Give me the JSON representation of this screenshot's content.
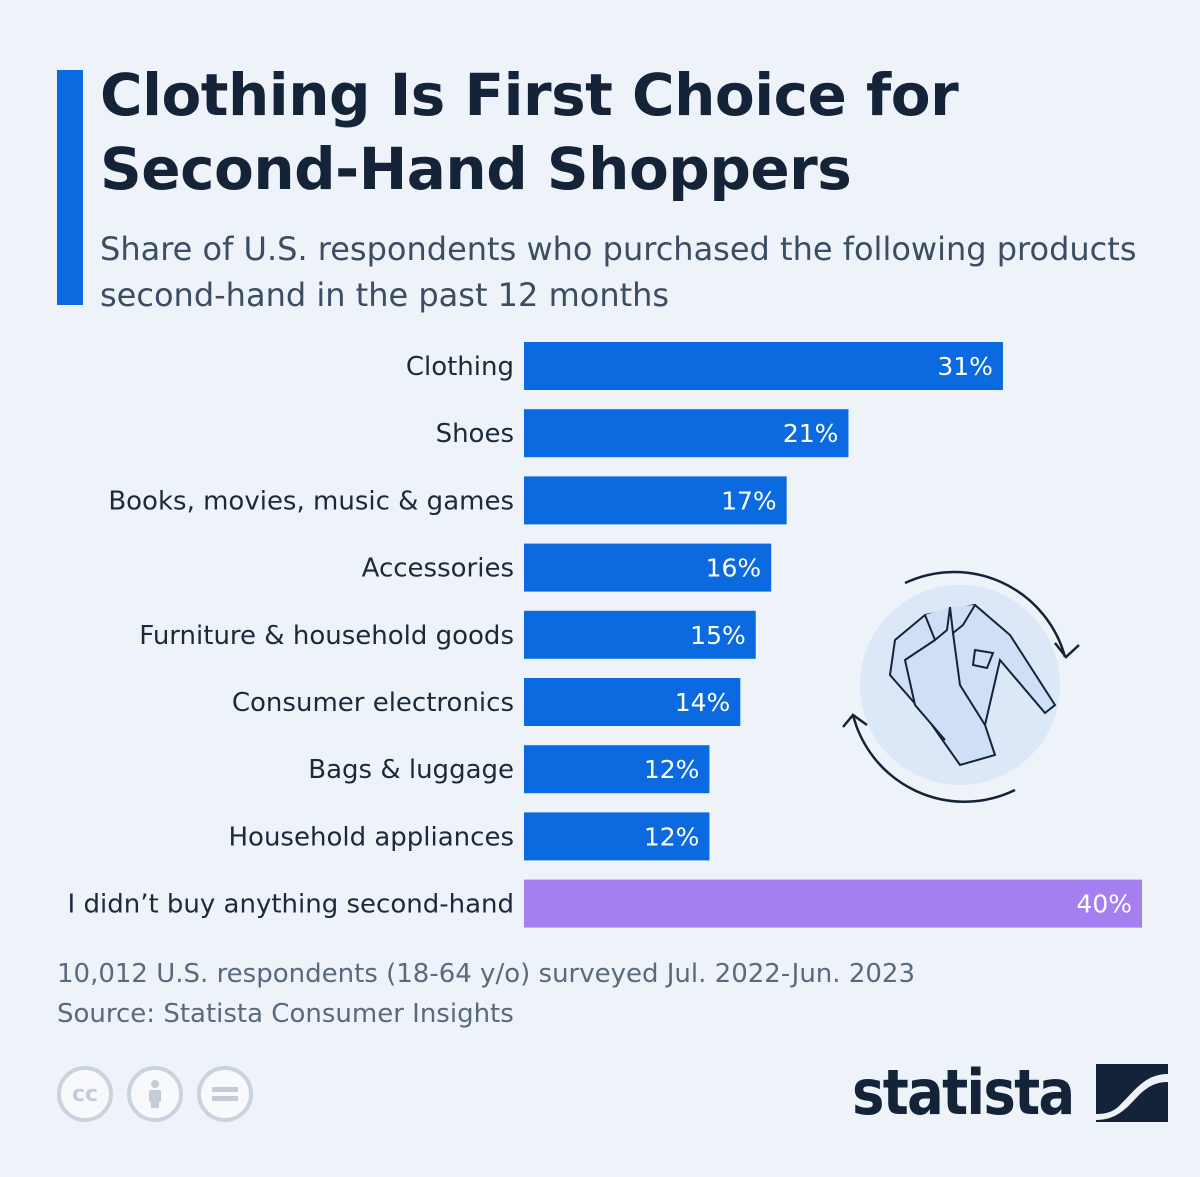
{
  "title": "Clothing Is First Choice for Second-Hand Shoppers",
  "subtitle": "Share of U.S. respondents who purchased the following products second-hand in the past 12 months",
  "chart_data": {
    "type": "bar",
    "orientation": "horizontal",
    "categories": [
      "Clothing",
      "Shoes",
      "Books, movies, music & games",
      "Accessories",
      "Furniture & household goods",
      "Consumer electronics",
      "Bags & luggage",
      "Household appliances",
      "I didn’t buy anything second-hand"
    ],
    "values": [
      31,
      21,
      17,
      16,
      15,
      14,
      12,
      12,
      40
    ],
    "value_labels": [
      "31%",
      "21%",
      "17%",
      "16%",
      "15%",
      "14%",
      "12%",
      "12%",
      "40%"
    ],
    "unit": "%",
    "xlim": [
      0,
      40
    ],
    "colors": [
      "#0b6ae0",
      "#0b6ae0",
      "#0b6ae0",
      "#0b6ae0",
      "#0b6ae0",
      "#0b6ae0",
      "#0b6ae0",
      "#0b6ae0",
      "#a57ff0"
    ],
    "grid": false,
    "legend": "none"
  },
  "footnote": {
    "line1": "10,012 U.S. respondents (18-64 y/o) surveyed Jul. 2022-Jun. 2023",
    "line2": "Source: Statista Consumer Insights"
  },
  "license_icons": [
    "cc-icon",
    "person-icon",
    "equals-icon"
  ],
  "logo": {
    "text": "statista"
  },
  "illustration_icon": "shirt-recycle-icon"
}
